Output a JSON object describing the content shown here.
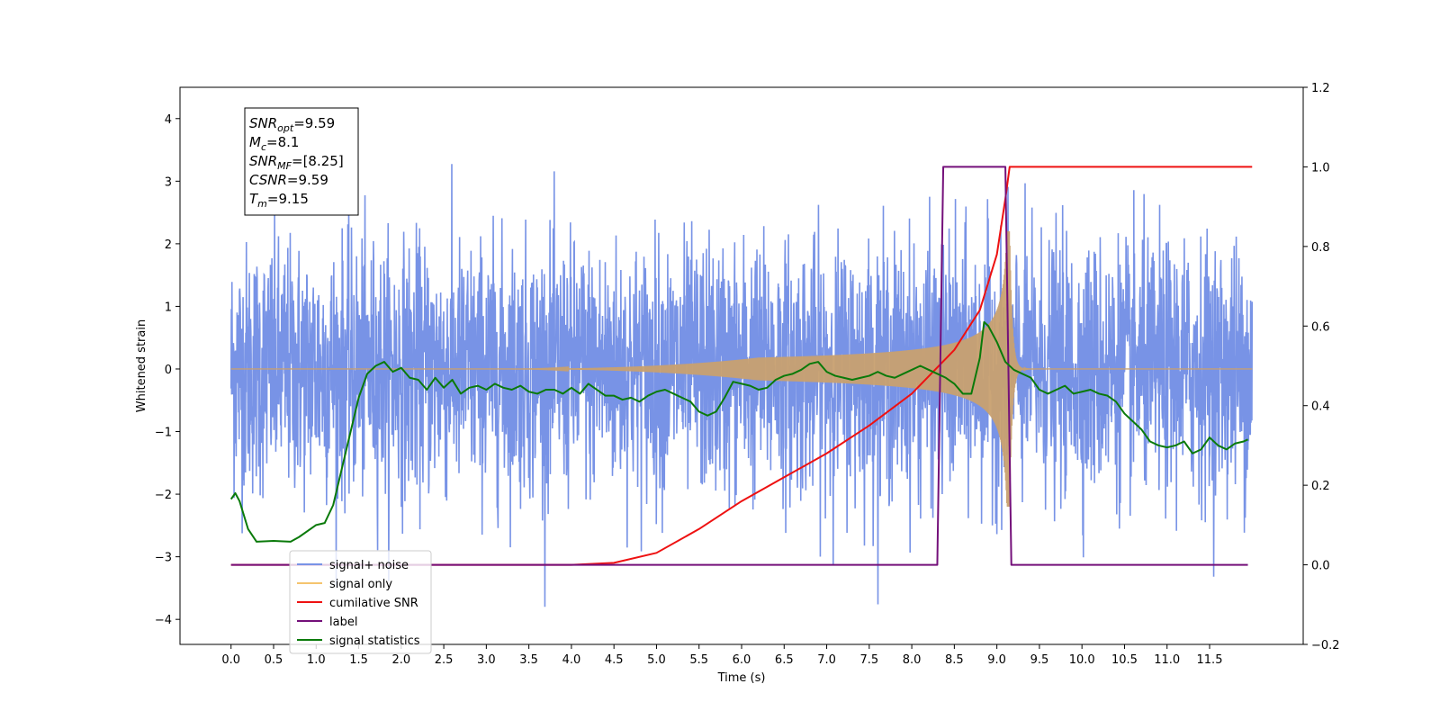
{
  "chart_data": {
    "type": "line",
    "xlabel": "Time (s)",
    "ylabel_left": "Whitened strain",
    "ylabel_right": "",
    "xlim": [
      -0.6,
      12.6
    ],
    "ylim_left": [
      -4.4,
      4.5
    ],
    "ylim_right": [
      -0.2,
      1.2
    ],
    "x_ticks": [
      0.0,
      0.5,
      1.0,
      1.5,
      2.0,
      2.5,
      3.0,
      3.5,
      4.0,
      4.5,
      5.0,
      5.5,
      6.0,
      6.5,
      7.0,
      7.5,
      8.0,
      8.5,
      9.0,
      9.5,
      10.0,
      10.5,
      11.0,
      11.5
    ],
    "x_tick_labels": [
      "0.0",
      "0.5",
      "1.0",
      "1.5",
      "2.0",
      "2.5",
      "3.0",
      "3.5",
      "4.0",
      "4.5",
      "5.0",
      "5.5",
      "6.0",
      "6.5",
      "7.0",
      "7.5",
      "8.0",
      "8.5",
      "9.0",
      "9.5",
      "10.0",
      "10.5",
      "11.0",
      "11.5"
    ],
    "y_left_ticks": [
      -4,
      -3,
      -2,
      -1,
      0,
      1,
      2,
      3,
      4
    ],
    "y_left_tick_labels": [
      "−4",
      "−3",
      "−2",
      "−1",
      "0",
      "1",
      "2",
      "3",
      "4"
    ],
    "y_right_ticks": [
      -0.2,
      0.0,
      0.2,
      0.4,
      0.6,
      0.8,
      1.0,
      1.2
    ],
    "y_right_tick_labels": [
      "−0.2",
      "0.0",
      "0.2",
      "0.4",
      "0.6",
      "0.8",
      "1.0",
      "1.2"
    ],
    "grid": false,
    "legend_placement": "lower-left",
    "info_box": {
      "lines": [
        {
          "sym": "SNR",
          "sub": "opt",
          "rest": "=9.59"
        },
        {
          "sym": "M",
          "sub": "c",
          "rest": "=8.1"
        },
        {
          "sym": "SNR",
          "sub": "MF",
          "rest": "=[8.25]"
        },
        {
          "sym": "CSNR",
          "sub": "",
          "rest": "=9.59"
        },
        {
          "sym": "T",
          "sub": "m",
          "rest": "=9.15"
        }
      ]
    },
    "series": [
      {
        "name": "signal+ noise",
        "color": "#7893e6",
        "axis": "left",
        "kind": "noise",
        "x_range": [
          0.0,
          12.0
        ],
        "std": 1.0
      },
      {
        "name": "signal only",
        "color": "#f5c46e",
        "axis": "left",
        "kind": "chirp",
        "x_range": [
          0.0,
          12.0
        ],
        "merger_time": 9.15,
        "peak_amplitude": 2.2
      },
      {
        "name": "cumilative SNR",
        "color": "#ee1111",
        "axis": "right",
        "x": [
          0.0,
          4.0,
          4.5,
          5.0,
          5.5,
          6.0,
          6.5,
          7.0,
          7.5,
          8.0,
          8.5,
          8.8,
          9.0,
          9.1,
          9.15,
          12.0
        ],
        "y": [
          0.0,
          0.0,
          0.005,
          0.03,
          0.09,
          0.16,
          0.22,
          0.28,
          0.35,
          0.43,
          0.54,
          0.64,
          0.78,
          0.92,
          1.0,
          1.0
        ]
      },
      {
        "name": "label",
        "color": "#74107a",
        "axis": "right",
        "x": [
          0.0,
          8.3,
          8.37,
          9.1,
          9.17,
          11.95
        ],
        "y": [
          0.0,
          0.0,
          1.0,
          1.0,
          0.0,
          0.0
        ]
      },
      {
        "name": "signal statistics",
        "color": "#0a7a0a",
        "axis": "right",
        "x": [
          0.0,
          0.05,
          0.1,
          0.2,
          0.3,
          0.5,
          0.7,
          0.8,
          1.0,
          1.1,
          1.2,
          1.3,
          1.4,
          1.5,
          1.6,
          1.7,
          1.8,
          1.9,
          2.0,
          2.1,
          2.2,
          2.3,
          2.4,
          2.5,
          2.6,
          2.7,
          2.8,
          2.9,
          3.0,
          3.1,
          3.2,
          3.3,
          3.4,
          3.5,
          3.6,
          3.7,
          3.8,
          3.9,
          4.0,
          4.1,
          4.2,
          4.3,
          4.4,
          4.5,
          4.6,
          4.7,
          4.8,
          4.9,
          5.0,
          5.1,
          5.2,
          5.3,
          5.4,
          5.5,
          5.6,
          5.7,
          5.8,
          5.9,
          6.0,
          6.1,
          6.2,
          6.3,
          6.4,
          6.5,
          6.6,
          6.7,
          6.8,
          6.9,
          7.0,
          7.1,
          7.2,
          7.3,
          7.4,
          7.5,
          7.6,
          7.7,
          7.8,
          7.9,
          8.0,
          8.1,
          8.2,
          8.3,
          8.4,
          8.5,
          8.6,
          8.7,
          8.8,
          8.85,
          8.9,
          9.0,
          9.1,
          9.2,
          9.3,
          9.4,
          9.5,
          9.6,
          9.7,
          9.8,
          9.9,
          10.0,
          10.1,
          10.2,
          10.3,
          10.4,
          10.5,
          10.6,
          10.7,
          10.8,
          10.9,
          11.0,
          11.1,
          11.2,
          11.3,
          11.4,
          11.5,
          11.6,
          11.7,
          11.8,
          11.9,
          11.95
        ],
        "y": [
          0.165,
          0.18,
          0.16,
          0.09,
          0.058,
          0.06,
          0.058,
          0.07,
          0.1,
          0.105,
          0.15,
          0.24,
          0.33,
          0.42,
          0.48,
          0.5,
          0.51,
          0.485,
          0.495,
          0.47,
          0.465,
          0.44,
          0.47,
          0.445,
          0.465,
          0.43,
          0.445,
          0.45,
          0.44,
          0.455,
          0.445,
          0.44,
          0.45,
          0.435,
          0.43,
          0.44,
          0.44,
          0.43,
          0.445,
          0.43,
          0.455,
          0.44,
          0.425,
          0.425,
          0.415,
          0.42,
          0.41,
          0.425,
          0.435,
          0.44,
          0.43,
          0.42,
          0.41,
          0.385,
          0.375,
          0.385,
          0.42,
          0.46,
          0.455,
          0.45,
          0.44,
          0.445,
          0.465,
          0.475,
          0.48,
          0.49,
          0.505,
          0.51,
          0.485,
          0.475,
          0.47,
          0.465,
          0.47,
          0.475,
          0.485,
          0.475,
          0.47,
          0.48,
          0.49,
          0.5,
          0.49,
          0.48,
          0.47,
          0.455,
          0.43,
          0.43,
          0.52,
          0.61,
          0.6,
          0.56,
          0.51,
          0.49,
          0.48,
          0.47,
          0.44,
          0.43,
          0.44,
          0.45,
          0.43,
          0.435,
          0.44,
          0.43,
          0.425,
          0.41,
          0.38,
          0.36,
          0.34,
          0.31,
          0.3,
          0.295,
          0.3,
          0.31,
          0.28,
          0.29,
          0.32,
          0.3,
          0.29,
          0.305,
          0.31,
          0.315
        ]
      }
    ]
  }
}
